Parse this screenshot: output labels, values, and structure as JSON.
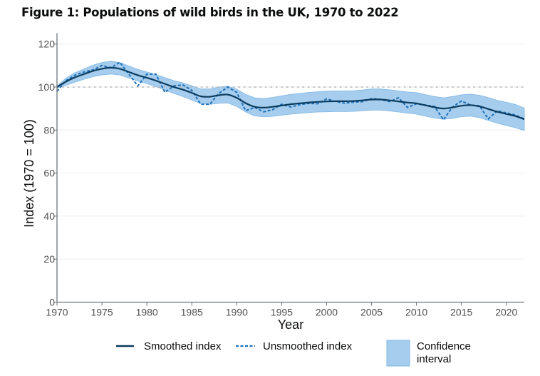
{
  "title": "Figure 1: Populations of wild birds in the UK, 1970 to 2022",
  "colors": {
    "smoothed": "#0b3c5d",
    "unsmoothed": "#1d70b8",
    "ci_fill": "#a6cdee",
    "ci_stroke": "#7fb6e4",
    "reference": "#b1b4b6",
    "axis": "#6f777b",
    "grid": "#eeeeee"
  },
  "chart_data": {
    "type": "line",
    "title": "Figure 1: Populations of wild birds in the UK, 1970 to 2022",
    "xlabel": "Year",
    "ylabel": "Index (1970 = 100)",
    "xlim": [
      1970,
      2022
    ],
    "ylim": [
      0,
      125
    ],
    "x_ticks": [
      1970,
      1975,
      1980,
      1985,
      1990,
      1995,
      2000,
      2005,
      2010,
      2015,
      2020
    ],
    "x_tick_labels": [
      "1970",
      "1975",
      "1980",
      "1985",
      "1990",
      "1995",
      "2000",
      "2005",
      "2010",
      "2015",
      "2020"
    ],
    "y_ticks": [
      0,
      20,
      40,
      60,
      80,
      100,
      120
    ],
    "y_tick_labels": [
      "0",
      "20",
      "40",
      "60",
      "80",
      "100",
      "120"
    ],
    "grid": true,
    "reference_line": 100,
    "legend_position": "bottom",
    "x": [
      1970,
      1971,
      1972,
      1973,
      1974,
      1975,
      1976,
      1977,
      1978,
      1979,
      1980,
      1981,
      1982,
      1983,
      1984,
      1985,
      1986,
      1987,
      1988,
      1989,
      1990,
      1991,
      1992,
      1993,
      1994,
      1995,
      1996,
      1997,
      1998,
      1999,
      2000,
      2001,
      2002,
      2003,
      2004,
      2005,
      2006,
      2007,
      2008,
      2009,
      2010,
      2011,
      2012,
      2013,
      2014,
      2015,
      2016,
      2017,
      2018,
      2019,
      2020,
      2021,
      2022
    ],
    "series": [
      {
        "name": "Smoothed index",
        "style": "solid",
        "values": [
          100,
          102.5,
          104.5,
          106,
          107.5,
          108.5,
          109,
          108.5,
          107,
          105.5,
          104.3,
          103,
          101.5,
          100,
          98.8,
          97.3,
          95.7,
          95.5,
          96.2,
          96.5,
          95,
          92.5,
          90.8,
          90.4,
          90.8,
          91.4,
          92,
          92.4,
          92.8,
          93.1,
          93.3,
          93.4,
          93.4,
          93.5,
          93.8,
          94.2,
          94.2,
          93.8,
          93.3,
          92.8,
          92.4,
          91.5,
          90.6,
          90,
          90.5,
          91.3,
          91.6,
          91,
          89.8,
          88.5,
          87.5,
          86.5,
          85
        ]
      },
      {
        "name": "Unsmoothed index",
        "style": "dashed",
        "values": [
          98,
          103,
          105.5,
          107,
          108,
          110,
          109,
          111.5,
          106,
          100.5,
          106,
          106,
          97.5,
          100.5,
          101,
          98.5,
          92,
          92,
          97,
          100,
          97.5,
          89,
          90.5,
          88.5,
          89.5,
          92,
          90.7,
          91.8,
          92.4,
          92.2,
          94.5,
          93.3,
          92.5,
          93,
          93.2,
          94.6,
          94.3,
          93.2,
          95,
          90.5,
          92.2,
          91.6,
          91,
          84.8,
          90.7,
          93.5,
          91.6,
          91.3,
          85.2,
          89,
          88,
          87,
          85.2
        ]
      }
    ],
    "confidence_interval": {
      "name": "Confidence interval",
      "lower": [
        99.6,
        100.8,
        102.3,
        103.6,
        104.8,
        105.6,
        106,
        105.6,
        104.2,
        102.8,
        101.6,
        100.2,
        98.6,
        97,
        95.6,
        94,
        92.3,
        91.9,
        92.4,
        92.6,
        91,
        88.4,
        86.6,
        86.1,
        86.4,
        86.9,
        87.4,
        87.8,
        88.1,
        88.4,
        88.5,
        88.6,
        88.6,
        88.7,
        89,
        89.3,
        89.3,
        88.9,
        88.4,
        87.9,
        87.4,
        86.5,
        85.6,
        85,
        85.4,
        86.2,
        86.5,
        85.8,
        84.5,
        83.2,
        82.1,
        81.1,
        79.8
      ],
      "upper": [
        100.4,
        104.2,
        106.7,
        108.4,
        110.2,
        111.4,
        112,
        111.4,
        109.8,
        108.2,
        107,
        105.8,
        104.4,
        103,
        102,
        100.6,
        99.1,
        99.1,
        100,
        100.4,
        99,
        96.6,
        95,
        94.7,
        95.2,
        95.9,
        96.6,
        97,
        97.5,
        97.8,
        98.1,
        98.2,
        98.2,
        98.3,
        98.6,
        99.1,
        99.1,
        98.7,
        98.2,
        97.7,
        97.4,
        96.5,
        95.6,
        95,
        95.6,
        96.4,
        96.7,
        96.2,
        95.1,
        93.8,
        92.9,
        91.9,
        90.2
      ]
    }
  },
  "legend": {
    "smoothed_label": "Smoothed index",
    "unsmoothed_label": "Unsmoothed index",
    "ci_label_line1": "Confidence",
    "ci_label_line2": "interval"
  }
}
